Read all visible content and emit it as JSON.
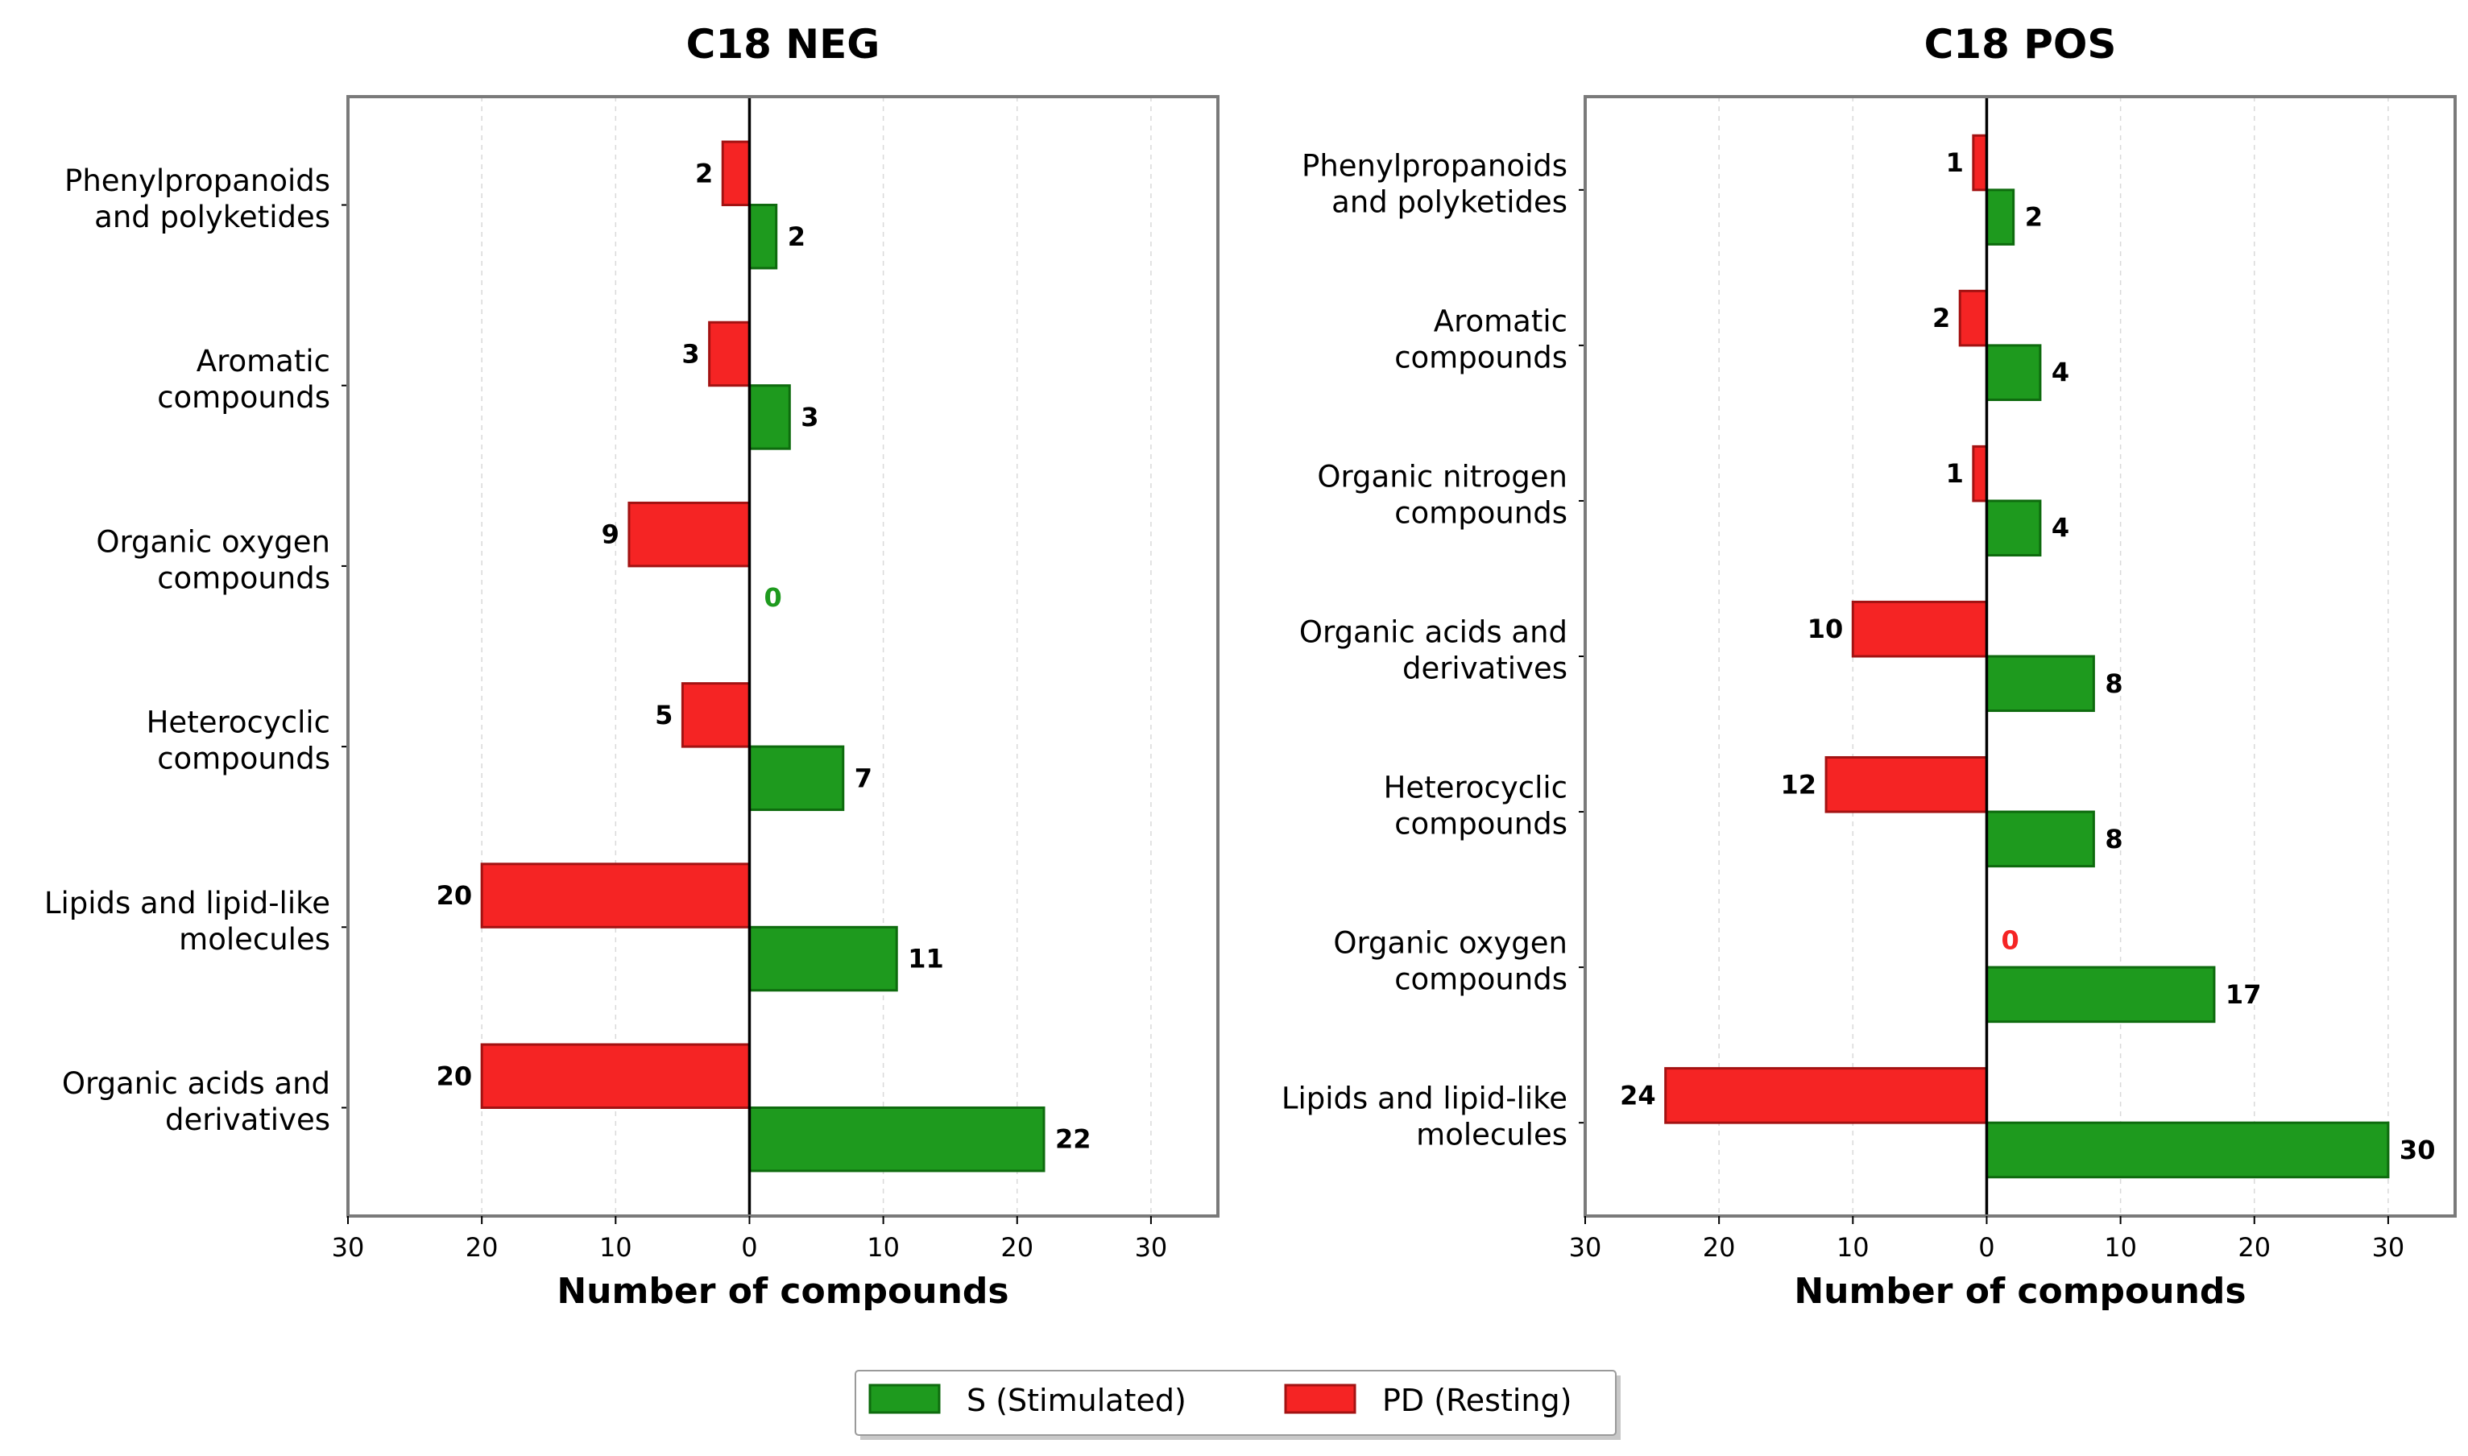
{
  "colors": {
    "s_fill": "#1e9a1e",
    "s_edge": "#0e6b0e",
    "pd_fill": "#f52424",
    "pd_edge": "#a31212",
    "zero_s": "#1e9a1e",
    "zero_pd": "#f52424",
    "frame": "#7a7a7a",
    "grid": "#d9d9d9"
  },
  "legend": {
    "s_label": "S (Stimulated)",
    "pd_label": "PD (Resting)"
  },
  "chart_data": [
    {
      "type": "bar",
      "orientation": "horizontal-diverging",
      "title": "C18 NEG",
      "xlabel": "Number of compounds",
      "xlim": [
        -30,
        35
      ],
      "x_ticks": [
        -30,
        -20,
        -10,
        0,
        10,
        20,
        30
      ],
      "x_tick_labels": [
        "30",
        "20",
        "10",
        "0",
        "10",
        "20",
        "30"
      ],
      "grid": "x-dashed",
      "categories": [
        [
          "Phenylpropanoids",
          "and polyketides"
        ],
        [
          "Aromatic",
          "compounds"
        ],
        [
          "Organic oxygen",
          "compounds"
        ],
        [
          "Heterocyclic",
          "compounds"
        ],
        [
          "Lipids and lipid-like",
          "molecules"
        ],
        [
          "Organic acids and",
          "derivatives"
        ]
      ],
      "series": [
        {
          "name": "S (Stimulated)",
          "values": [
            2,
            3,
            0,
            7,
            11,
            22
          ]
        },
        {
          "name": "PD (Resting)",
          "values": [
            2,
            3,
            9,
            5,
            20,
            20
          ]
        }
      ]
    },
    {
      "type": "bar",
      "orientation": "horizontal-diverging",
      "title": "C18 POS",
      "xlabel": "Number of compounds",
      "xlim": [
        -30,
        35
      ],
      "x_ticks": [
        -30,
        -20,
        -10,
        0,
        10,
        20,
        30
      ],
      "x_tick_labels": [
        "30",
        "20",
        "10",
        "0",
        "10",
        "20",
        "30"
      ],
      "grid": "x-dashed",
      "categories": [
        [
          "Phenylpropanoids",
          "and polyketides"
        ],
        [
          "Aromatic",
          "compounds"
        ],
        [
          "Organic nitrogen",
          "compounds"
        ],
        [
          "Organic acids and",
          "derivatives"
        ],
        [
          "Heterocyclic",
          "compounds"
        ],
        [
          "Organic oxygen",
          "compounds"
        ],
        [
          "Lipids and lipid-like",
          "molecules"
        ]
      ],
      "series": [
        {
          "name": "S (Stimulated)",
          "values": [
            2,
            4,
            4,
            8,
            8,
            17,
            30
          ]
        },
        {
          "name": "PD (Resting)",
          "values": [
            1,
            2,
            1,
            10,
            12,
            0,
            24
          ]
        }
      ]
    }
  ]
}
